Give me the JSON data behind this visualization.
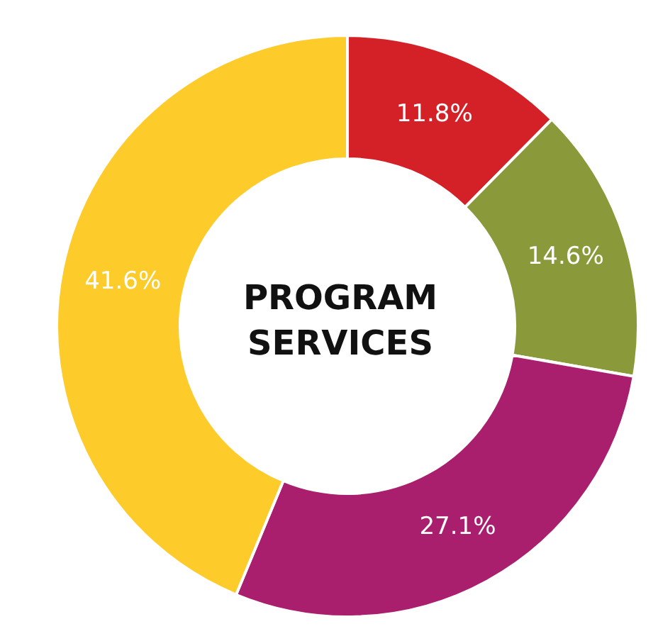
{
  "chart_data": {
    "type": "donut",
    "title": "PROGRAM SERVICES",
    "categories": [
      null,
      null,
      null,
      null
    ],
    "values": [
      11.8,
      14.6,
      27.1,
      41.6
    ],
    "colors": [
      "#d42127",
      "#8a9a3a",
      "#a91f6e",
      "#fdcb2a"
    ],
    "value_labels": [
      "11.8%",
      "14.6%",
      "27.1%",
      "41.6%"
    ],
    "legend": false
  }
}
